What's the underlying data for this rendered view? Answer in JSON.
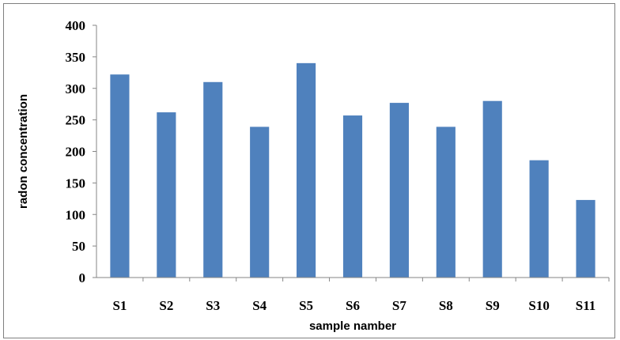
{
  "chart_data": {
    "type": "bar",
    "title": "",
    "xlabel": "sample namber",
    "ylabel": "radon concentration",
    "categories": [
      "S1",
      "S2",
      "S3",
      "S4",
      "S5",
      "S6",
      "S7",
      "S8",
      "S9",
      "S10",
      "S11"
    ],
    "values": [
      322,
      262,
      310,
      239,
      340,
      257,
      277,
      239,
      280,
      186,
      123
    ],
    "ylim": [
      0,
      400
    ],
    "yticks": [
      "0",
      "50",
      "100",
      "150",
      "200",
      "250",
      "300",
      "350",
      "400"
    ],
    "grid": false,
    "legend": "none",
    "bar_color": "#4f81bd",
    "axis_color": "#868686"
  }
}
